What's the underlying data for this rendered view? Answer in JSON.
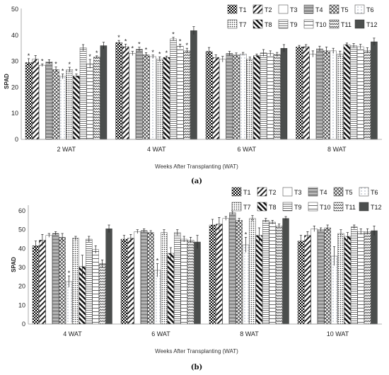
{
  "figure": {
    "panel_labels": [
      "(a)",
      "(b)"
    ]
  },
  "legend": {
    "treatments": [
      "T1",
      "T2",
      "T3",
      "T4",
      "T5",
      "T6",
      "T7",
      "T8",
      "T9",
      "T10",
      "T11",
      "T12"
    ]
  },
  "chart_data": [
    {
      "type": "bar",
      "panel": "(a)",
      "xlabel": "Weeks After Transplanting (WAT)",
      "ylabel": "SPAD",
      "ylim": [
        0,
        50
      ],
      "yticks": [
        0,
        10,
        20,
        30,
        40,
        50
      ],
      "categories": [
        "2 WAT",
        "4 WAT",
        "6  WAT",
        "8  WAT"
      ],
      "series": [
        {
          "name": "T1",
          "values": [
            29.5,
            37.2,
            33.8,
            35.5
          ],
          "errors": [
            1.5,
            0.8,
            1.5,
            0.6
          ],
          "sig": [
            true,
            true,
            false,
            false
          ]
        },
        {
          "name": "T2",
          "values": [
            30.8,
            35.6,
            31.5,
            35.6
          ],
          "errors": [
            1.4,
            1.0,
            1.0,
            0.8
          ],
          "sig": [
            false,
            true,
            false,
            false
          ]
        },
        {
          "name": "T3",
          "values": [
            28.5,
            33.0,
            30.8,
            32.8
          ],
          "errors": [
            0.5,
            0.8,
            1.1,
            1.2
          ],
          "sig": [
            true,
            true,
            false,
            false
          ]
        },
        {
          "name": "T4",
          "values": [
            29.8,
            34.6,
            33.0,
            34.8
          ],
          "errors": [
            0.8,
            0.8,
            0.8,
            1.0
          ],
          "sig": [
            false,
            true,
            false,
            false
          ]
        },
        {
          "name": "T5",
          "values": [
            26.8,
            32.5,
            32.4,
            34.0
          ],
          "errors": [
            1.0,
            0.8,
            0.8,
            1.5
          ],
          "sig": [
            true,
            true,
            false,
            false
          ]
        },
        {
          "name": "T6",
          "values": [
            24.2,
            31.8,
            32.8,
            34.0
          ],
          "errors": [
            0.9,
            0.6,
            0.6,
            1.0
          ],
          "sig": [
            true,
            true,
            false,
            false
          ]
        },
        {
          "name": "T7",
          "values": [
            26.8,
            30.8,
            30.8,
            32.7
          ],
          "errors": [
            0.9,
            0.9,
            0.8,
            1.2
          ],
          "sig": [
            true,
            true,
            false,
            false
          ]
        },
        {
          "name": "T8",
          "values": [
            24.4,
            31.5,
            32.2,
            36.4
          ],
          "errors": [
            0.7,
            0.5,
            0.6,
            0.6
          ],
          "sig": [
            true,
            true,
            false,
            false
          ]
        },
        {
          "name": "T9",
          "values": [
            35.2,
            38.6,
            33.2,
            36.0
          ],
          "errors": [
            1.2,
            0.6,
            1.3,
            0.8
          ],
          "sig": [
            false,
            true,
            false,
            false
          ]
        },
        {
          "name": "T10",
          "values": [
            29.0,
            35.8,
            33.0,
            35.6
          ],
          "errors": [
            1.7,
            0.8,
            1.0,
            0.9
          ],
          "sig": [
            true,
            true,
            false,
            false
          ]
        },
        {
          "name": "T11",
          "values": [
            31.6,
            34.0,
            32.6,
            34.2
          ],
          "errors": [
            0.5,
            1.0,
            0.8,
            1.0
          ],
          "sig": [
            true,
            true,
            false,
            false
          ]
        },
        {
          "name": "T12",
          "values": [
            36.0,
            41.8,
            35.0,
            37.5
          ],
          "errors": [
            1.3,
            1.5,
            1.4,
            1.4
          ],
          "sig": [
            false,
            false,
            false,
            false
          ]
        }
      ]
    },
    {
      "type": "bar",
      "panel": "(b)",
      "xlabel": "Weeks After Transplanting (WAT)",
      "ylabel": "SPAD",
      "ylim": [
        0,
        60
      ],
      "yticks": [
        0,
        10,
        20,
        30,
        40,
        50,
        60
      ],
      "categories": [
        "4 WAT",
        "6  WAT",
        "8  WAT",
        "10  WAT"
      ],
      "series": [
        {
          "name": "T1",
          "values": [
            41.5,
            45.0,
            52.5,
            44.0
          ],
          "errors": [
            2.5,
            2.0,
            3.0,
            3.0
          ],
          "sig": [
            false,
            false,
            false,
            false
          ]
        },
        {
          "name": "T2",
          "values": [
            44.5,
            45.5,
            53.0,
            47.0
          ],
          "errors": [
            3.0,
            2.0,
            3.5,
            2.0
          ],
          "sig": [
            false,
            false,
            false,
            false
          ]
        },
        {
          "name": "T3",
          "values": [
            47.0,
            49.0,
            56.0,
            50.5
          ],
          "errors": [
            1.0,
            1.0,
            1.0,
            1.5
          ],
          "sig": [
            false,
            false,
            false,
            false
          ]
        },
        {
          "name": "T4",
          "values": [
            48.0,
            49.5,
            59.0,
            50.0
          ],
          "errors": [
            1.0,
            1.0,
            1.0,
            1.0
          ],
          "sig": [
            false,
            false,
            false,
            false
          ]
        },
        {
          "name": "T5",
          "values": [
            46.0,
            48.5,
            55.0,
            51.0
          ],
          "errors": [
            2.0,
            1.0,
            1.0,
            1.5
          ],
          "sig": [
            false,
            false,
            false,
            false
          ]
        },
        {
          "name": "T6",
          "values": [
            22.5,
            28.5,
            42.0,
            36.0
          ],
          "errors": [
            3.0,
            3.5,
            4.0,
            5.0
          ],
          "sig": [
            true,
            true,
            true,
            false
          ]
        },
        {
          "name": "T7",
          "values": [
            45.5,
            48.5,
            56.0,
            48.0
          ],
          "errors": [
            1.0,
            1.5,
            1.5,
            2.0
          ],
          "sig": [
            false,
            false,
            false,
            false
          ]
        },
        {
          "name": "T8",
          "values": [
            30.5,
            37.5,
            47.0,
            46.5
          ],
          "errors": [
            6.0,
            3.0,
            4.0,
            2.0
          ],
          "sig": [
            false,
            false,
            false,
            false
          ]
        },
        {
          "name": "T9",
          "values": [
            45.0,
            48.5,
            55.0,
            51.5
          ],
          "errors": [
            1.5,
            1.5,
            1.0,
            1.0
          ],
          "sig": [
            false,
            false,
            false,
            false
          ]
        },
        {
          "name": "T10",
          "values": [
            39.5,
            45.0,
            54.0,
            49.0
          ],
          "errors": [
            2.0,
            1.5,
            1.0,
            1.5
          ],
          "sig": [
            false,
            false,
            false,
            false
          ]
        },
        {
          "name": "T11",
          "values": [
            32.0,
            44.5,
            52.0,
            49.0
          ],
          "errors": [
            2.0,
            1.5,
            1.0,
            1.5
          ],
          "sig": [
            false,
            false,
            false,
            false
          ]
        },
        {
          "name": "T12",
          "values": [
            50.5,
            43.5,
            56.0,
            49.5
          ],
          "errors": [
            2.0,
            3.5,
            1.0,
            2.5
          ],
          "sig": [
            false,
            false,
            false,
            false
          ]
        }
      ]
    }
  ]
}
